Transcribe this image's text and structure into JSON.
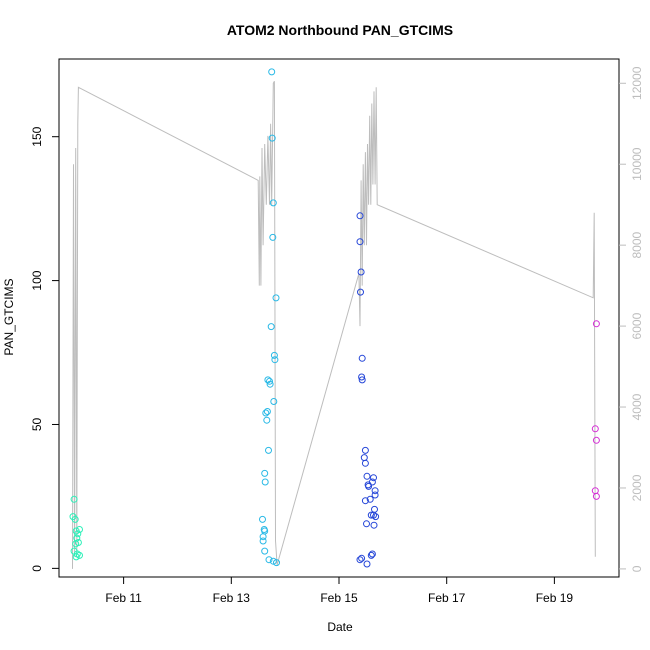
{
  "chart_data": {
    "type": "scatter",
    "title": "ATOM2 Northbound PAN_GTCIMS",
    "xlabel": "Date",
    "ylabel": "PAN_GTCIMS",
    "x_ticks": [
      "Feb 11",
      "Feb 13",
      "Feb 15",
      "Feb 17",
      "Feb 19"
    ],
    "x_tick_dates": [
      11,
      13,
      15,
      17,
      19
    ],
    "xlim": [
      9.8,
      20.2
    ],
    "y_ticks": [
      0,
      50,
      100,
      150
    ],
    "ylim": [
      -3,
      177
    ],
    "y2_ticks": [
      0,
      2000,
      4000,
      6000,
      8000,
      10000,
      12000
    ],
    "y2lim": [
      -200,
      12600
    ],
    "colors": {
      "frame": "#000000",
      "altitude_line": "#bdbdbd",
      "flight1": "#2bf0b8",
      "flight2": "#29b9e6",
      "flight3": "#2546d8",
      "flight4": "#d62fd6"
    },
    "points": [
      {
        "x": 10.08,
        "y": 24.0,
        "c": "#2bf0b8"
      },
      {
        "x": 10.06,
        "y": 18.0,
        "c": "#2bf0b8"
      },
      {
        "x": 10.1,
        "y": 17.0,
        "c": "#2bf0b8"
      },
      {
        "x": 10.12,
        "y": 13.0,
        "c": "#2bf0b8"
      },
      {
        "x": 10.18,
        "y": 13.5,
        "c": "#2bf0b8"
      },
      {
        "x": 10.15,
        "y": 12.0,
        "c": "#2bf0b8"
      },
      {
        "x": 10.13,
        "y": 10.5,
        "c": "#2bf0b8"
      },
      {
        "x": 10.16,
        "y": 9.0,
        "c": "#2bf0b8"
      },
      {
        "x": 10.11,
        "y": 8.5,
        "c": "#2bf0b8"
      },
      {
        "x": 10.08,
        "y": 6.0,
        "c": "#2bf0b8"
      },
      {
        "x": 10.14,
        "y": 5.0,
        "c": "#2bf0b8"
      },
      {
        "x": 10.18,
        "y": 4.5,
        "c": "#2bf0b8"
      },
      {
        "x": 10.12,
        "y": 4.0,
        "c": "#2bf0b8"
      },
      {
        "x": 13.75,
        "y": 172.5,
        "c": "#29b9e6"
      },
      {
        "x": 13.76,
        "y": 149.5,
        "c": "#29b9e6"
      },
      {
        "x": 13.78,
        "y": 127.0,
        "c": "#29b9e6"
      },
      {
        "x": 13.77,
        "y": 115.0,
        "c": "#29b9e6"
      },
      {
        "x": 13.83,
        "y": 94.0,
        "c": "#29b9e6"
      },
      {
        "x": 13.74,
        "y": 84.0,
        "c": "#29b9e6"
      },
      {
        "x": 13.8,
        "y": 74.0,
        "c": "#29b9e6"
      },
      {
        "x": 13.81,
        "y": 72.5,
        "c": "#29b9e6"
      },
      {
        "x": 13.68,
        "y": 65.5,
        "c": "#29b9e6"
      },
      {
        "x": 13.71,
        "y": 65.0,
        "c": "#29b9e6"
      },
      {
        "x": 13.72,
        "y": 64.0,
        "c": "#29b9e6"
      },
      {
        "x": 13.79,
        "y": 58.0,
        "c": "#29b9e6"
      },
      {
        "x": 13.64,
        "y": 54.0,
        "c": "#29b9e6"
      },
      {
        "x": 13.67,
        "y": 54.5,
        "c": "#29b9e6"
      },
      {
        "x": 13.66,
        "y": 51.5,
        "c": "#29b9e6"
      },
      {
        "x": 13.69,
        "y": 41.0,
        "c": "#29b9e6"
      },
      {
        "x": 13.62,
        "y": 33.0,
        "c": "#29b9e6"
      },
      {
        "x": 13.63,
        "y": 30.0,
        "c": "#29b9e6"
      },
      {
        "x": 13.58,
        "y": 17.0,
        "c": "#29b9e6"
      },
      {
        "x": 13.61,
        "y": 13.5,
        "c": "#29b9e6"
      },
      {
        "x": 13.62,
        "y": 13.0,
        "c": "#29b9e6"
      },
      {
        "x": 13.59,
        "y": 11.0,
        "c": "#29b9e6"
      },
      {
        "x": 13.59,
        "y": 9.5,
        "c": "#29b9e6"
      },
      {
        "x": 13.62,
        "y": 6.0,
        "c": "#29b9e6"
      },
      {
        "x": 13.7,
        "y": 3.0,
        "c": "#29b9e6"
      },
      {
        "x": 13.78,
        "y": 2.5,
        "c": "#29b9e6"
      },
      {
        "x": 13.84,
        "y": 2.0,
        "c": "#29b9e6"
      },
      {
        "x": 15.39,
        "y": 122.5,
        "c": "#2546d8"
      },
      {
        "x": 15.39,
        "y": 113.5,
        "c": "#2546d8"
      },
      {
        "x": 15.41,
        "y": 103.0,
        "c": "#2546d8"
      },
      {
        "x": 15.4,
        "y": 96.0,
        "c": "#2546d8"
      },
      {
        "x": 15.43,
        "y": 73.0,
        "c": "#2546d8"
      },
      {
        "x": 15.42,
        "y": 66.5,
        "c": "#2546d8"
      },
      {
        "x": 15.43,
        "y": 65.5,
        "c": "#2546d8"
      },
      {
        "x": 15.49,
        "y": 41.0,
        "c": "#2546d8"
      },
      {
        "x": 15.47,
        "y": 38.5,
        "c": "#2546d8"
      },
      {
        "x": 15.49,
        "y": 36.5,
        "c": "#2546d8"
      },
      {
        "x": 15.52,
        "y": 32.0,
        "c": "#2546d8"
      },
      {
        "x": 15.64,
        "y": 31.5,
        "c": "#2546d8"
      },
      {
        "x": 15.62,
        "y": 30.0,
        "c": "#2546d8"
      },
      {
        "x": 15.54,
        "y": 29.0,
        "c": "#2546d8"
      },
      {
        "x": 15.55,
        "y": 28.5,
        "c": "#2546d8"
      },
      {
        "x": 15.67,
        "y": 27.0,
        "c": "#2546d8"
      },
      {
        "x": 15.67,
        "y": 25.5,
        "c": "#2546d8"
      },
      {
        "x": 15.58,
        "y": 24.0,
        "c": "#2546d8"
      },
      {
        "x": 15.49,
        "y": 23.5,
        "c": "#2546d8"
      },
      {
        "x": 15.66,
        "y": 20.5,
        "c": "#2546d8"
      },
      {
        "x": 15.64,
        "y": 18.5,
        "c": "#2546d8"
      },
      {
        "x": 15.6,
        "y": 18.5,
        "c": "#2546d8"
      },
      {
        "x": 15.68,
        "y": 18.0,
        "c": "#2546d8"
      },
      {
        "x": 15.51,
        "y": 15.5,
        "c": "#2546d8"
      },
      {
        "x": 15.65,
        "y": 15.0,
        "c": "#2546d8"
      },
      {
        "x": 15.62,
        "y": 5.0,
        "c": "#2546d8"
      },
      {
        "x": 15.6,
        "y": 4.5,
        "c": "#2546d8"
      },
      {
        "x": 15.42,
        "y": 3.5,
        "c": "#2546d8"
      },
      {
        "x": 15.39,
        "y": 3.0,
        "c": "#2546d8"
      },
      {
        "x": 15.52,
        "y": 1.5,
        "c": "#2546d8"
      },
      {
        "x": 19.78,
        "y": 85.0,
        "c": "#d62fd6"
      },
      {
        "x": 19.76,
        "y": 48.5,
        "c": "#d62fd6"
      },
      {
        "x": 19.78,
        "y": 44.5,
        "c": "#d62fd6"
      },
      {
        "x": 19.76,
        "y": 27.0,
        "c": "#d62fd6"
      },
      {
        "x": 19.78,
        "y": 25.0,
        "c": "#d62fd6"
      }
    ],
    "altitude_line": [
      [
        10.05,
        0
      ],
      [
        10.07,
        10000
      ],
      [
        10.09,
        300
      ],
      [
        10.11,
        10400
      ],
      [
        10.13,
        400
      ],
      [
        10.15,
        11000
      ],
      [
        10.16,
        11900
      ],
      [
        13.5,
        9600
      ],
      [
        13.52,
        7000
      ],
      [
        13.53,
        9700
      ],
      [
        13.55,
        7000
      ],
      [
        13.57,
        10400
      ],
      [
        13.59,
        8000
      ],
      [
        13.62,
        10500
      ],
      [
        13.65,
        9000
      ],
      [
        13.68,
        10700
      ],
      [
        13.71,
        9000
      ],
      [
        13.73,
        11000
      ],
      [
        13.75,
        9000
      ],
      [
        13.78,
        12000
      ],
      [
        13.8,
        12050
      ],
      [
        13.82,
        700
      ],
      [
        13.85,
        100
      ],
      [
        15.37,
        7300
      ],
      [
        15.39,
        6000
      ],
      [
        15.41,
        9600
      ],
      [
        15.43,
        7000
      ],
      [
        15.45,
        10000
      ],
      [
        15.47,
        8000
      ],
      [
        15.49,
        10300
      ],
      [
        15.51,
        8000
      ],
      [
        15.53,
        10500
      ],
      [
        15.55,
        9000
      ],
      [
        15.57,
        11200
      ],
      [
        15.59,
        9000
      ],
      [
        15.61,
        11500
      ],
      [
        15.63,
        9500
      ],
      [
        15.65,
        11800
      ],
      [
        15.67,
        9500
      ],
      [
        15.69,
        11900
      ],
      [
        15.71,
        9000
      ],
      [
        19.72,
        6700
      ],
      [
        19.74,
        8800
      ],
      [
        19.76,
        300
      ]
    ]
  }
}
